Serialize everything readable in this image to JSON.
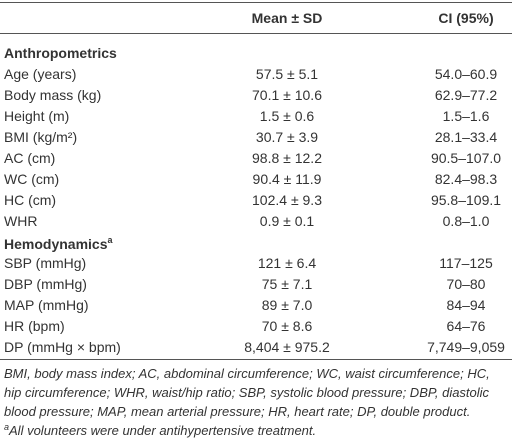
{
  "header": {
    "mean": "Mean ± SD",
    "ci": "CI (95%)"
  },
  "sections": [
    {
      "title": "Anthropometrics",
      "rows": [
        [
          "Age (years)",
          "57.5 ± 5.1",
          "54.0–60.9"
        ],
        [
          "Body mass (kg)",
          "70.1 ± 10.6",
          "62.9–77.2"
        ],
        [
          "Height (m)",
          "1.5 ± 0.6",
          "1.5–1.6"
        ],
        [
          "BMI (kg/m²)",
          "30.7 ± 3.9",
          "28.1–33.4"
        ],
        [
          "AC (cm)",
          "98.8 ± 12.2",
          "90.5–107.0"
        ],
        [
          "WC (cm)",
          "90.4 ± 11.9",
          "82.4–98.3"
        ],
        [
          "HC (cm)",
          "102.4 ± 9.3",
          "95.8–109.1"
        ],
        [
          "WHR",
          "0.9 ± 0.1",
          "0.8–1.0"
        ]
      ]
    },
    {
      "title": "Hemodynamics",
      "marker": "a",
      "rows": [
        [
          "SBP (mmHg)",
          "121 ± 6.4",
          "117–125"
        ],
        [
          "DBP (mmHg)",
          "75 ± 7.1",
          "70–80"
        ],
        [
          "MAP (mmHg)",
          "89 ± 7.0",
          "84–94"
        ],
        [
          "HR (bpm)",
          "70 ± 8.6",
          "64–76"
        ],
        [
          "DP (mmHg × bpm)",
          "8,404 ± 975.2",
          "7,749–9,059"
        ]
      ]
    }
  ],
  "footnote": {
    "lines": [
      "BMI, body mass index; AC, abdominal circumference; WC, waist circumference; HC,",
      "hip circumference; WHR, waist/hip ratio; SBP, systolic blood pressure; DBP, diastolic",
      "blood pressure; MAP, mean arterial pressure; HR, heart rate; DP, double product."
    ],
    "marker": "a",
    "note": "All volunteers were under antihypertensive treatment."
  }
}
